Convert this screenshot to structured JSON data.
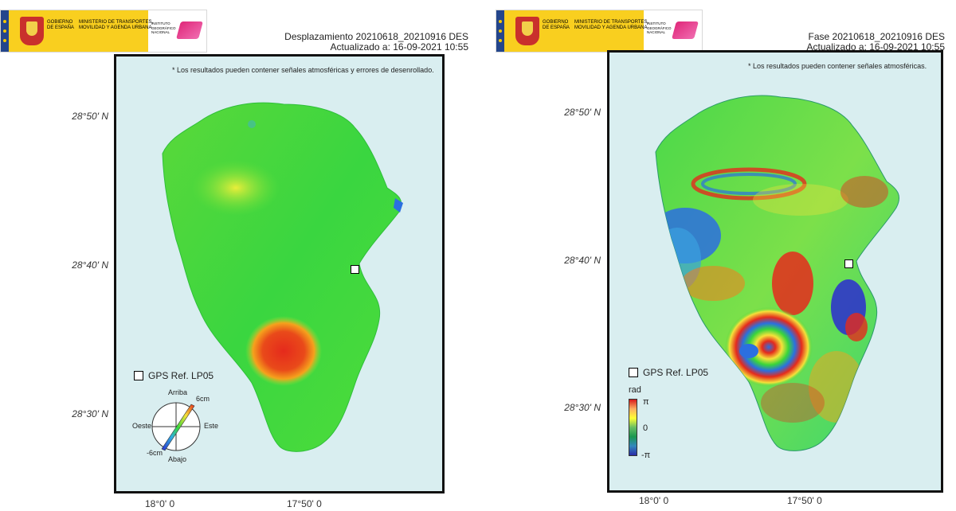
{
  "header": {
    "logo_gobierno": "GOBIERNO DE ESPAÑA",
    "logo_ministerio": "MINISTERIO DE TRANSPORTES, MOVILIDAD Y AGENDA URBANA",
    "logo_ign": "INSTITUTO GEOGRÁFICO NACIONAL"
  },
  "left_map": {
    "title": "Desplazamiento 20210618_20210916 DES",
    "updated": "Actualizado a: 16-09-2021 10:55",
    "note": "* Los resultados pueden contener señales atmosféricas y errores de desenrollado.",
    "lat_labels": [
      "28°50' N",
      "28°40' N",
      "28°30' N"
    ],
    "lon_labels": [
      "18°0' 0",
      "17°50' 0"
    ],
    "gps_label": "GPS Ref. LP05",
    "compass": {
      "up": "Arriba",
      "down": "Abajo",
      "west": "Oeste",
      "east": "Este",
      "max": "6cm",
      "min": "-6cm"
    }
  },
  "right_map": {
    "title": "Fase 20210618_20210916 DES",
    "updated": "Actualizado a: 16-09-2021 10:55",
    "note": "* Los resultados pueden contener señales atmosféricas.",
    "lat_labels": [
      "28°50' N",
      "28°40' N",
      "28°30' N"
    ],
    "lon_labels": [
      "18°0' 0",
      "17°50' 0"
    ],
    "gps_label": "GPS Ref. LP05",
    "colorbar": {
      "unit": "rad",
      "max": "π",
      "mid": "0",
      "min": "-π"
    }
  },
  "colors": {
    "sea": "#d9eef0",
    "frame": "#111111",
    "displacement_base": "#3ad63a",
    "uplift": "#e52a1c",
    "flag_yellow": "#f9cf1f"
  }
}
